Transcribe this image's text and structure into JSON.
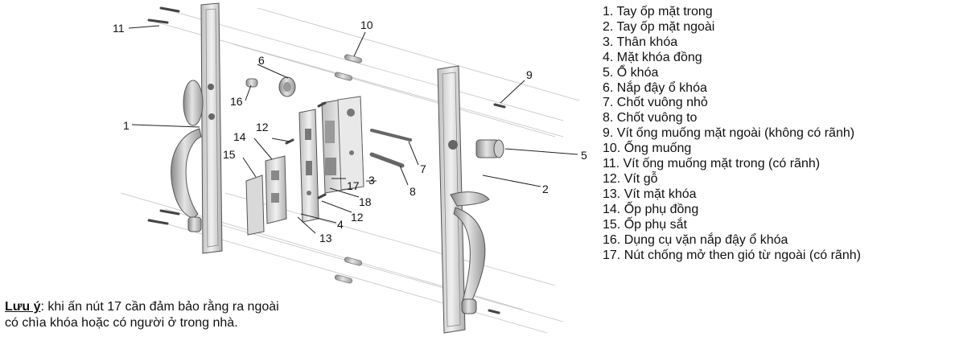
{
  "callouts": [
    "1",
    "2",
    "3",
    "4",
    "5",
    "6",
    "7",
    "8",
    "9",
    "10",
    "11",
    "12",
    "12",
    "13",
    "14",
    "15",
    "16",
    "17",
    "18"
  ],
  "parts": [
    "1. Tay ốp mặt trong",
    "2. Tay ốp mặt ngoài",
    "3. Thân khóa",
    "4. Mặt khóa đồng",
    "5. Ổ khóa",
    "6. Nắp đậy ổ khóa",
    "7. Chốt vuông nhỏ",
    "8. Chốt vuông to",
    "9. Vít ống muống mặt ngoài (không có rãnh)",
    "10. Ống muống",
    "11. Vít ống muống mặt trong (có rãnh)",
    "12. Vít gỗ",
    "13. Vít mặt khóa",
    "14. Ốp phụ đồng",
    "15. Ốp phụ sắt",
    "16. Dụng cụ vặn nắp đậy ổ khóa",
    "17. Nút chống mở then gió từ ngoài (có rãnh)"
  ],
  "note": {
    "label": "Lưu ý",
    "text_line1": ": khi ấn nút 17 cần đảm bảo rằng ra ngoài",
    "text_line2": "có chìa khóa hoặc có người ở trong nhà."
  }
}
